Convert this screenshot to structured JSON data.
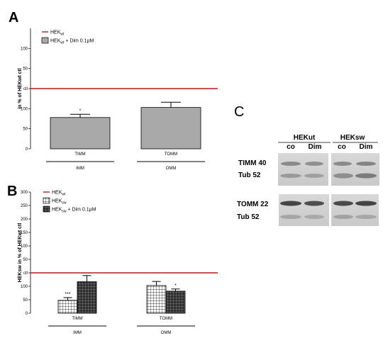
{
  "panels": {
    "a": "A",
    "b": "B",
    "c": "C"
  },
  "colors": {
    "reference_line": "#b21d1d",
    "bar_gray": "#a9a9a9",
    "outline": "#000000"
  },
  "chart_data": [
    {
      "type": "bar",
      "panel": "A",
      "ylabel": "in % of HEKwt ctl",
      "ylim": [
        0,
        100
      ],
      "yticks": [
        "0",
        "50",
        "100",
        "ctl",
        "50",
        "100"
      ],
      "ytick_values": [
        0,
        50,
        100,
        150,
        200,
        250
      ],
      "ymax": 300,
      "categories": [
        "TIMM",
        "TOMM"
      ],
      "groups": [
        "IMM",
        "OMM"
      ],
      "legend": [
        {
          "kind": "line",
          "label": "HEKwt"
        },
        {
          "kind": "gray",
          "label": "HEKwt + Dim 0.1µM"
        }
      ],
      "reference": 150,
      "series": [
        {
          "name": "HEKwt + Dim 0.1µM",
          "fill": "gray",
          "values": [
            78,
            103
          ],
          "errors": [
            8,
            13
          ]
        }
      ],
      "annotations": [
        "*",
        ""
      ]
    },
    {
      "type": "bar",
      "panel": "B",
      "ylabel": "HEKsw in % of HEKwt ctl",
      "ylim": [
        0,
        300
      ],
      "yticks": [
        "0",
        "50",
        "100",
        "ctl",
        "50",
        "100",
        "150",
        "200",
        "250",
        "300"
      ],
      "ytick_values": [
        0,
        50,
        100,
        150,
        200,
        250,
        300,
        350,
        400,
        450
      ],
      "ymax": 450,
      "categories": [
        "TIMM",
        "TOMM"
      ],
      "groups": [
        "IMM",
        "OMM"
      ],
      "legend": [
        {
          "kind": "line",
          "label": "HEKwt"
        },
        {
          "kind": "grid",
          "label": "HEKsw"
        },
        {
          "kind": "dark",
          "label": "HEKsw + Dim 0.1µM"
        }
      ],
      "reference": 150,
      "series": [
        {
          "name": "HEKsw",
          "fill": "grid",
          "values": [
            48,
            103
          ],
          "errors": [
            10,
            15
          ]
        },
        {
          "name": "HEKsw + Dim 0.1µM",
          "fill": "dark",
          "values": [
            117,
            82
          ],
          "errors": [
            23,
            8
          ]
        }
      ],
      "annotations": [
        [
          "***",
          ""
        ],
        [
          "",
          "*"
        ]
      ]
    }
  ],
  "blot": {
    "groups": [
      "HEKut",
      "HEKsw"
    ],
    "lanes": [
      "co",
      "Dim",
      "co",
      "Dim"
    ],
    "rows": [
      "TIMM 40",
      "Tub 52",
      "TOMM 22",
      "Tub 52"
    ]
  }
}
